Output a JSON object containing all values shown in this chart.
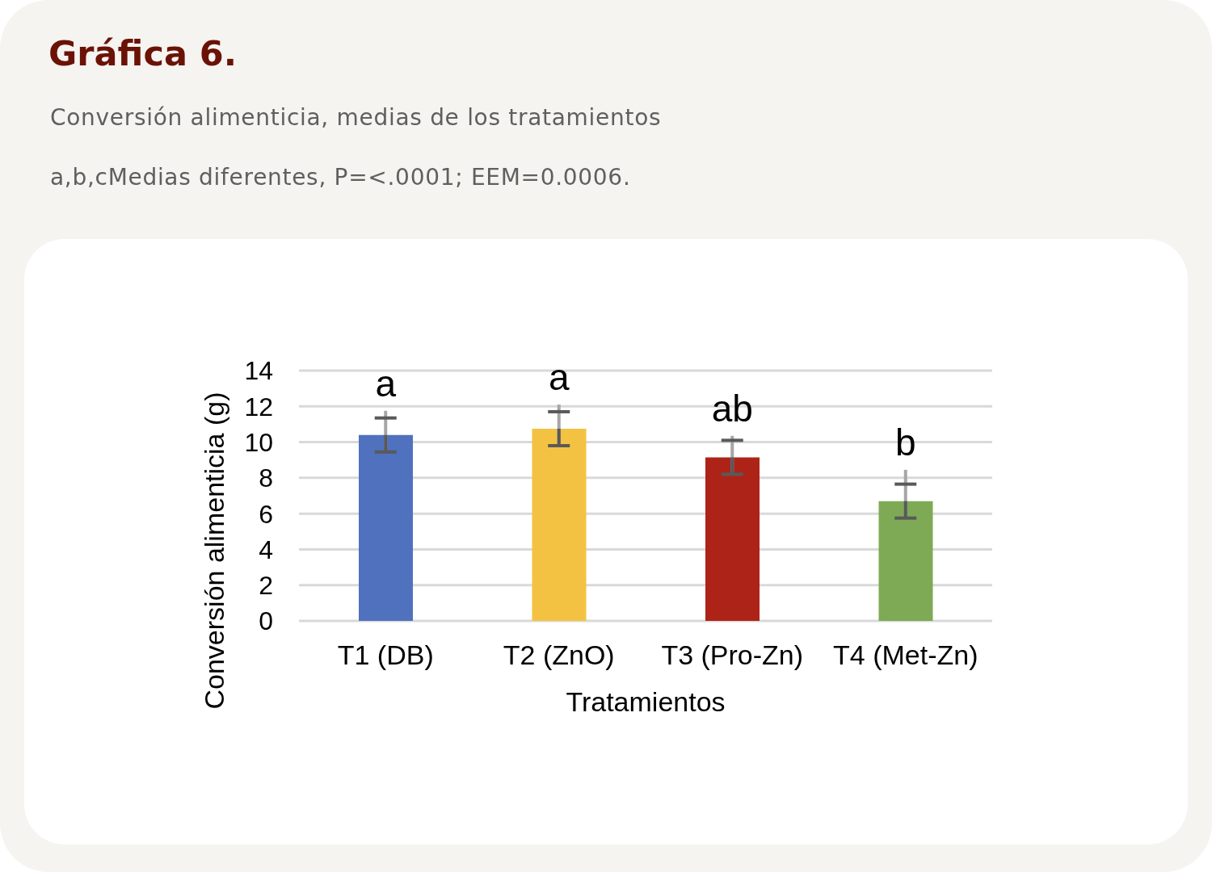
{
  "chart_data": {
    "type": "bar",
    "title": "Gráfica 6.",
    "subtitle": "Conversión alimenticia, medias de los tratamientos",
    "xlabel": "Tratamientos",
    "ylabel": "Conversión alimenticia (g)",
    "categories": [
      "T1 (DB)",
      "T2 (ZnO)",
      "T3 (Pro-Zn)",
      "T4 (Met-Zn)"
    ],
    "values": [
      10.4,
      10.75,
      9.15,
      6.7
    ],
    "colors": [
      "#4f71be",
      "#f4c242",
      "#ae2318",
      "#7eaa55"
    ],
    "errors": [
      [
        9.45,
        11.75
      ],
      [
        9.8,
        12.1
      ],
      [
        8.2,
        10.35
      ],
      [
        5.75,
        8.45
      ]
    ],
    "value_labels": [
      "a",
      "a",
      "ab",
      "b"
    ],
    "ylim": [
      0,
      14
    ],
    "yticks": [
      0,
      2,
      4,
      6,
      8,
      10,
      12,
      14
    ],
    "grid": "y",
    "annotations": [
      "a,b,cMedias diferentes, P=<.0001; EEM=0.0006."
    ]
  }
}
